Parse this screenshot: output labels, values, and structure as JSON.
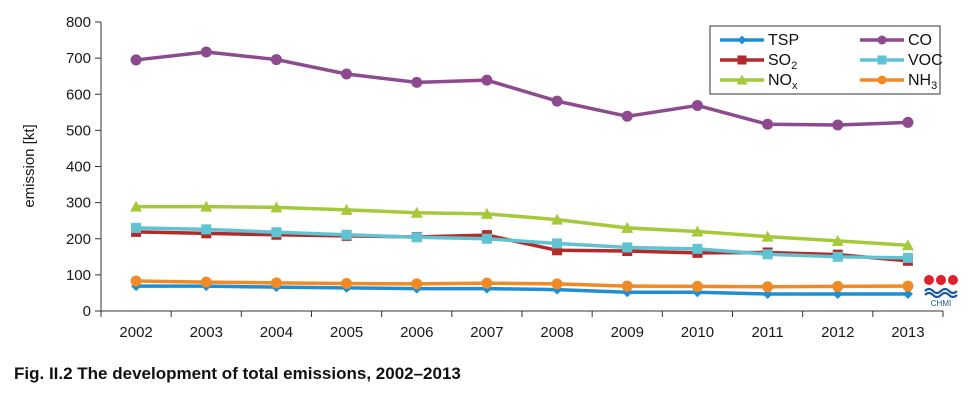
{
  "caption": "Fig. II.2  The development of total emissions, 2002–2013",
  "logo": {
    "text": "CHMI",
    "icon": "chmi-logo-icon"
  },
  "chart_data": {
    "type": "line",
    "title": "",
    "xlabel": "",
    "ylabel": "emission [kt]",
    "ylim": [
      0,
      800
    ],
    "yticks": [
      0,
      100,
      200,
      300,
      400,
      500,
      600,
      700,
      800
    ],
    "grid": false,
    "legend_position": "top-right",
    "categories": [
      "2002",
      "2003",
      "2004",
      "2005",
      "2006",
      "2007",
      "2008",
      "2009",
      "2010",
      "2011",
      "2012",
      "2013"
    ],
    "series": [
      {
        "name": "TSP",
        "label_main": "TSP",
        "label_sub": "",
        "color": "#1f8fd2",
        "marker": "diamond",
        "values": [
          69,
          69,
          66,
          64,
          62,
          62,
          59,
          52,
          52,
          47,
          47,
          47
        ]
      },
      {
        "name": "CO",
        "label_main": "CO",
        "label_sub": "",
        "color": "#8e4a8e",
        "marker": "circle",
        "values": [
          695,
          717,
          696,
          656,
          633,
          639,
          581,
          539,
          569,
          517,
          515,
          522
        ]
      },
      {
        "name": "SO2",
        "label_main": "SO",
        "label_sub": "2",
        "color": "#b22a2a",
        "marker": "square",
        "values": [
          219,
          215,
          211,
          208,
          205,
          210,
          168,
          166,
          161,
          162,
          156,
          139
        ]
      },
      {
        "name": "VOC",
        "label_main": "VOC",
        "label_sub": "",
        "color": "#5fc3d3",
        "marker": "square",
        "values": [
          230,
          226,
          218,
          211,
          204,
          200,
          187,
          176,
          172,
          157,
          150,
          147
        ]
      },
      {
        "name": "NOx",
        "label_main": "NO",
        "label_sub": "x",
        "color": "#a6c93a",
        "marker": "triangle",
        "values": [
          289,
          289,
          287,
          280,
          272,
          269,
          253,
          230,
          220,
          206,
          194,
          182
        ]
      },
      {
        "name": "NH3",
        "label_main": "NH",
        "label_sub": "3",
        "color": "#f08a24",
        "marker": "circle",
        "values": [
          83,
          80,
          78,
          76,
          75,
          77,
          75,
          69,
          68,
          67,
          68,
          69
        ]
      }
    ]
  }
}
